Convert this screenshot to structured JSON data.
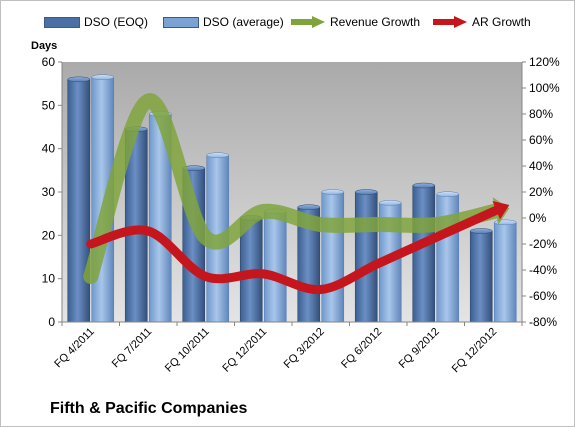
{
  "company_title": "Fifth & Pacific Companies",
  "chart_data": {
    "type": "bar",
    "categories": [
      "FQ 4/2011",
      "FQ 7/2011",
      "FQ 10/2011",
      "FQ 12/2011",
      "FQ 3/2012",
      "FQ 6/2012",
      "FQ 9/2012",
      "FQ 12/2012"
    ],
    "series": [
      {
        "name": "DSO (EOQ)",
        "axis": "left",
        "kind": "bar",
        "color": "#4a6fa5",
        "values": [
          56,
          44.5,
          35.5,
          24,
          26.5,
          30,
          31.5,
          21
        ]
      },
      {
        "name": "DSO (average)",
        "axis": "left",
        "kind": "bar",
        "color": "#7aa2d4",
        "values": [
          56.5,
          48,
          38.5,
          25.5,
          30,
          27.5,
          29.5,
          23
        ]
      },
      {
        "name": "Revenue Growth",
        "axis": "right",
        "kind": "line",
        "color": "#80a43c",
        "values": [
          -45,
          90,
          -15,
          5,
          -5,
          -5,
          -5,
          5
        ]
      },
      {
        "name": "AR Growth",
        "axis": "right",
        "kind": "line",
        "color": "#c4161c",
        "values": [
          -20,
          -10,
          -45,
          -43,
          -55,
          -35,
          -15,
          5
        ]
      }
    ],
    "ylabel": "Days",
    "ylim": [
      0,
      60
    ],
    "y_ticks": [
      "0",
      "10",
      "20",
      "30",
      "40",
      "50",
      "60"
    ],
    "y2lim": [
      -80,
      120
    ],
    "y2_ticks": [
      "-80%",
      "-60%",
      "-40%",
      "-20%",
      "0%",
      "20%",
      "40%",
      "60%",
      "80%",
      "100%",
      "120%"
    ],
    "legend": "top",
    "grid": false
  }
}
